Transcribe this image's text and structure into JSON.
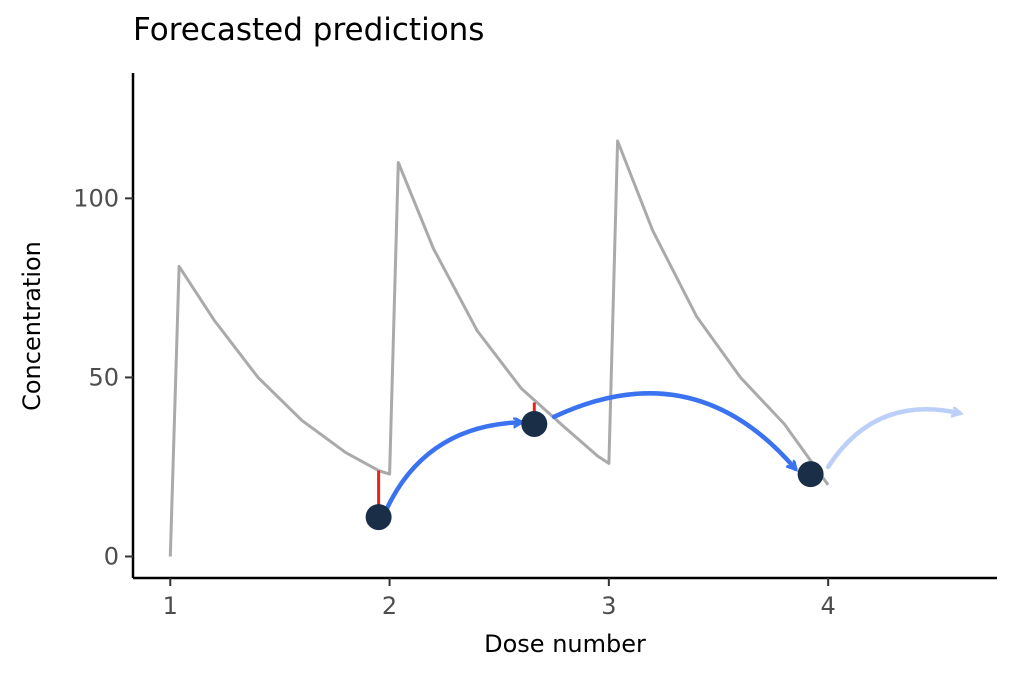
{
  "chart_data": {
    "type": "line",
    "title": "Forecasted predictions",
    "xlabel": "Dose number",
    "ylabel": "Concentration",
    "xlim": [
      0.83,
      4.77
    ],
    "ylim": [
      -6,
      135
    ],
    "x_ticks": [
      1,
      2,
      3,
      4
    ],
    "y_ticks": [
      0,
      50,
      100
    ],
    "grid": false,
    "series": [
      {
        "role": "predicted-concentration-curve",
        "color": "#aaaaaa",
        "points": [
          [
            1.0,
            0
          ],
          [
            1.04,
            81
          ],
          [
            1.2,
            66
          ],
          [
            1.4,
            50
          ],
          [
            1.6,
            38
          ],
          [
            1.8,
            29
          ],
          [
            1.95,
            24
          ],
          [
            2.0,
            23
          ],
          [
            2.04,
            110
          ],
          [
            2.2,
            86
          ],
          [
            2.4,
            63
          ],
          [
            2.6,
            47
          ],
          [
            2.8,
            36
          ],
          [
            2.95,
            28
          ],
          [
            3.0,
            26
          ],
          [
            3.04,
            116
          ],
          [
            3.2,
            91
          ],
          [
            3.4,
            67
          ],
          [
            3.6,
            50
          ],
          [
            3.8,
            37
          ],
          [
            4.0,
            20
          ]
        ]
      }
    ],
    "observations": [
      {
        "x": 1.95,
        "y": 11,
        "predicted": 24
      },
      {
        "x": 2.66,
        "y": 37,
        "predicted": 43
      },
      {
        "x": 3.92,
        "y": 23,
        "predicted": 23
      }
    ],
    "arrows": [
      {
        "from": [
          1.97,
          11
        ],
        "to": [
          2.6,
          37.5
        ],
        "color": "#3b72f0",
        "bend": 0.32
      },
      {
        "from": [
          2.75,
          39
        ],
        "to": [
          3.85,
          24.5
        ],
        "color": "#3b72f0",
        "bend": 0.38
      },
      {
        "from": [
          4.0,
          25
        ],
        "to": [
          4.6,
          40
        ],
        "color": "#bccff9",
        "bend": 0.35
      }
    ],
    "colors": {
      "curve": "#aaaaaa",
      "residual": "#e8221c",
      "point": "#1a2e47",
      "arrow": "#3b72f0",
      "arrow_faded": "#bccff9"
    }
  }
}
